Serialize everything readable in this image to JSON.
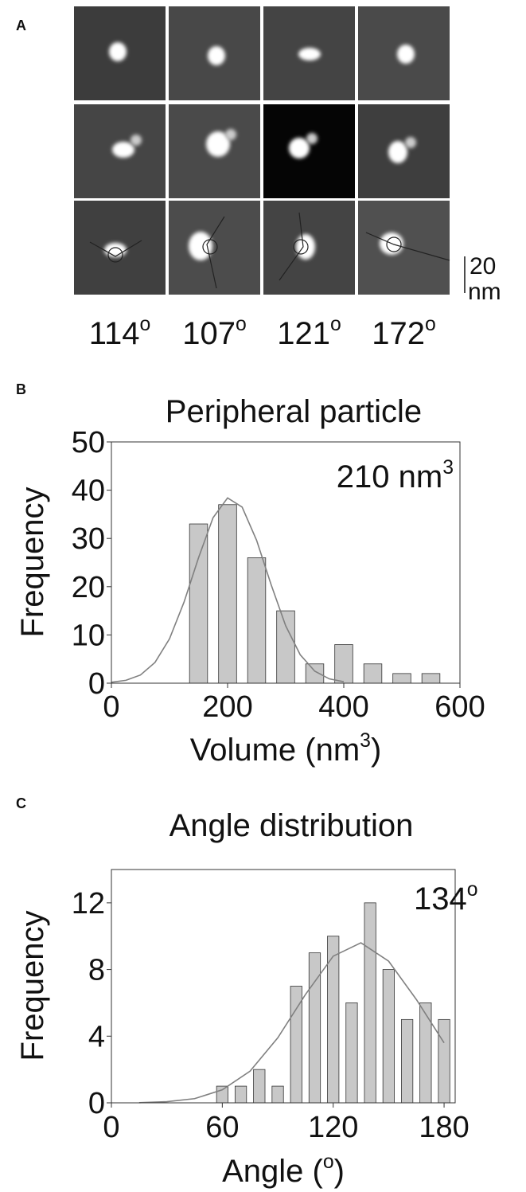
{
  "panel_a": {
    "label": "A",
    "angles": [
      "114",
      "107",
      "121",
      "172"
    ],
    "degree_mark": "o",
    "scale_number": "20",
    "scale_unit": "nm"
  },
  "chart_data": [
    {
      "type": "bar",
      "panel_label": "B",
      "title": "Peripheral particle",
      "annotation": "210 nm",
      "annotation_sup": "3",
      "xlabel": "Volume (nm",
      "xlabel_sup": "3",
      "xlabel_end": ")",
      "ylabel": "Frequency",
      "x": [
        150,
        200,
        250,
        300,
        350,
        400,
        450,
        500,
        550
      ],
      "values": [
        33,
        37,
        26,
        15,
        4,
        8,
        4,
        2,
        2
      ],
      "color": "#c8c8c8",
      "fit": {
        "x": [
          0,
          25,
          50,
          75,
          100,
          125,
          150,
          175,
          200,
          225,
          250,
          275,
          300,
          325,
          350,
          375,
          400
        ],
        "values": [
          0.2,
          0.6,
          1.7,
          4.3,
          9.2,
          16.8,
          26,
          34.3,
          38.4,
          36.5,
          29.6,
          20.4,
          11.9,
          5.9,
          2.5,
          0.9,
          0.3
        ],
        "color": "#808080"
      },
      "xlim": [
        0,
        600
      ],
      "ylim": [
        0,
        50
      ],
      "xticks": [
        0,
        200,
        400,
        600
      ],
      "yticks": [
        0,
        10,
        20,
        30,
        40,
        50
      ]
    },
    {
      "type": "bar",
      "panel_label": "C",
      "title": "Angle distribution",
      "annotation": "134",
      "annotation_sup": "o",
      "xlabel": "Angle (",
      "xlabel_sup": "o",
      "xlabel_end": ")",
      "ylabel": "Frequency",
      "x": [
        60,
        70,
        80,
        90,
        100,
        110,
        120,
        130,
        140,
        150,
        160,
        170,
        180
      ],
      "values": [
        1,
        1,
        2,
        1,
        7,
        9,
        10,
        6,
        12,
        8,
        5,
        6,
        5
      ],
      "color": "#c8c8c8",
      "fit": {
        "x": [
          15,
          30,
          45,
          60,
          75,
          90,
          105,
          120,
          135,
          150,
          165,
          180
        ],
        "values": [
          0.01,
          0.07,
          0.25,
          0.78,
          1.9,
          3.9,
          6.5,
          8.8,
          9.6,
          8.5,
          6.2,
          3.6
        ],
        "color": "#808080"
      },
      "xlim": [
        0,
        186
      ],
      "ylim": [
        0,
        14
      ],
      "xticks": [
        0,
        60,
        120,
        180
      ],
      "yticks": [
        0,
        4,
        8,
        12
      ]
    }
  ]
}
